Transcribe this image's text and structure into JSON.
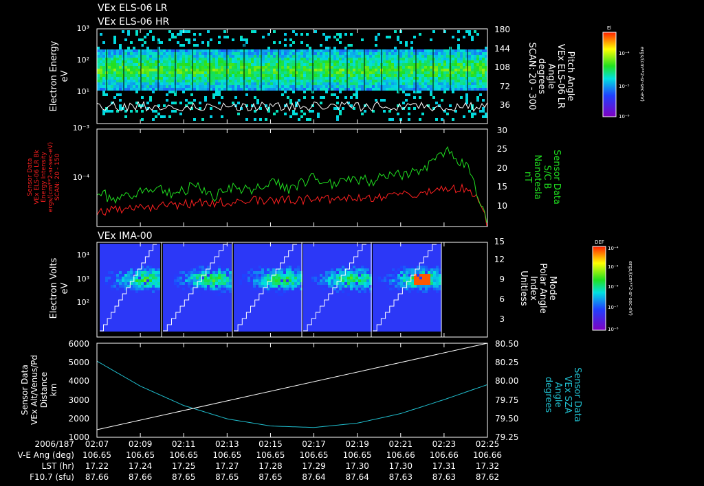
{
  "titles": {
    "panel1": [
      "VEx ELS-06 LR",
      "VEx ELS-06 HR"
    ],
    "panel3": "VEx IMA-00"
  },
  "colors": {
    "background": "#000000",
    "axis": "#ffffff",
    "red_series": "#ff2020",
    "green_series": "#20e020",
    "cyan_series": "#20c0d0"
  },
  "colorbars": [
    {
      "label": "El",
      "tick_labels": [
        "10⁻⁴",
        "10⁻⁵",
        "10⁻⁶"
      ],
      "unit": "ergs/(cm**2-sr-sec-eV)"
    },
    {
      "label": "DEF",
      "tick_labels": [
        "10⁻⁴",
        "10⁻⁵",
        "10⁻⁶",
        "10⁻⁷",
        "10⁻⁸"
      ],
      "unit": "ergs/(cm**2-sr-sec-eV)"
    }
  ],
  "chart_data": [
    {
      "type": "heatmap",
      "ylabel": [
        "Electron Energy",
        "eV"
      ],
      "ylog": true,
      "ylim": [
        3,
        1000
      ],
      "y_ticks": [
        "10¹",
        "10²",
        "10³"
      ],
      "right_ylabel": [
        "Pitch Angle",
        "VEx ELS-06 LR",
        "Angle",
        "degrees",
        "SCAN: 20 - 300"
      ],
      "right_ylim": [
        0,
        180
      ],
      "right_ticks": [
        "36",
        "72",
        "108",
        "144",
        "180"
      ]
    },
    {
      "type": "line",
      "ylabel": [
        "Sensor Data",
        "VEx ELS-06 LR Bk",
        "Energy Intensity",
        "ergs/(cm**2-sr-sec-eV)",
        "SCAN: 20 - 150"
      ],
      "ylog": true,
      "y_ticks": [
        "10⁻⁴",
        "10⁻³"
      ],
      "right_ylabel": [
        "Sensor Data",
        "S/C B",
        "Nanotesla",
        "nT"
      ],
      "right_ylim": [
        5,
        30
      ],
      "right_ticks": [
        "10",
        "15",
        "20",
        "25",
        "30"
      ],
      "series": [
        {
          "color": "red",
          "values": [
            2e-05,
            2.4e-05,
            2.5e-05,
            2.7e-05,
            2.8e-05,
            3e-05,
            3.2e-05,
            3.3e-05,
            3.4e-05,
            3.5e-05,
            3.6e-05,
            3.7e-05,
            3.6e-05,
            3.7e-05,
            3.8e-05,
            4e-05,
            4.6e-05,
            5.2e-05,
            6e-05,
            6e-05,
            1e-05
          ]
        },
        {
          "color": "green",
          "axis": "right",
          "values": [
            14,
            11.5,
            13.5,
            14.5,
            13,
            15.5,
            12.5,
            15.5,
            14,
            16.5,
            14.5,
            17.5,
            16,
            17.5,
            16.5,
            19,
            18,
            21,
            24.5,
            20,
            6
          ]
        }
      ]
    },
    {
      "type": "heatmap",
      "ylabel": [
        "Electron Volts",
        "eV"
      ],
      "ylog": true,
      "ylim": [
        10,
        40000
      ],
      "y_ticks": [
        "10²",
        "10³",
        "10⁴"
      ],
      "right_ylabel": [
        "Mode",
        "Polar Angle",
        "Index",
        "Unitless"
      ],
      "right_ylim": [
        1,
        15
      ],
      "right_ticks": [
        "3",
        "6",
        "9",
        "12",
        "15"
      ]
    },
    {
      "type": "line",
      "ylabel": [
        "Sensor Data",
        "VEx Alt/Venus/Pd",
        "Distance",
        "km"
      ],
      "ylim": [
        1000,
        6000
      ],
      "y_ticks": [
        "1000",
        "2000",
        "3000",
        "4000",
        "5000",
        "6000"
      ],
      "right_ylabel": [
        "Sensor Data",
        "VEx SZA",
        "Angle",
        "degrees"
      ],
      "right_ylim": [
        79.25,
        80.5
      ],
      "right_ticks": [
        "79.25",
        "79.50",
        "79.75",
        "80.00",
        "80.25",
        "80.50"
      ],
      "series": [
        {
          "color": "cyan",
          "x": [
            "02:07",
            "02:09",
            "02:11",
            "02:13",
            "02:15",
            "02:17",
            "02:19",
            "02:21",
            "02:23",
            "02:25"
          ],
          "values": [
            5050,
            3720,
            2690,
            1980,
            1600,
            1520,
            1750,
            2260,
            3000,
            3800
          ]
        },
        {
          "color": "white",
          "axis": "right",
          "x": [
            "02:07",
            "02:25"
          ],
          "values": [
            79.35,
            80.5
          ]
        }
      ]
    }
  ],
  "time_axis": {
    "date_label": "2006/187",
    "ticks": [
      "02:07",
      "02:09",
      "02:11",
      "02:13",
      "02:15",
      "02:17",
      "02:19",
      "02:21",
      "02:23",
      "02:25"
    ],
    "rows": [
      {
        "label": "V-E Ang (deg)",
        "values": [
          "106.65",
          "106.65",
          "106.65",
          "106.65",
          "106.65",
          "106.65",
          "106.65",
          "106.66",
          "106.66",
          "106.66"
        ]
      },
      {
        "label": "LST (hr)",
        "values": [
          "17.22",
          "17.24",
          "17.25",
          "17.27",
          "17.28",
          "17.29",
          "17.30",
          "17.30",
          "17.31",
          "17.32"
        ]
      },
      {
        "label": "F10.7 (sfu)",
        "values": [
          "87.66",
          "87.66",
          "87.65",
          "87.65",
          "87.65",
          "87.64",
          "87.64",
          "87.63",
          "87.63",
          "87.62"
        ]
      }
    ]
  }
}
